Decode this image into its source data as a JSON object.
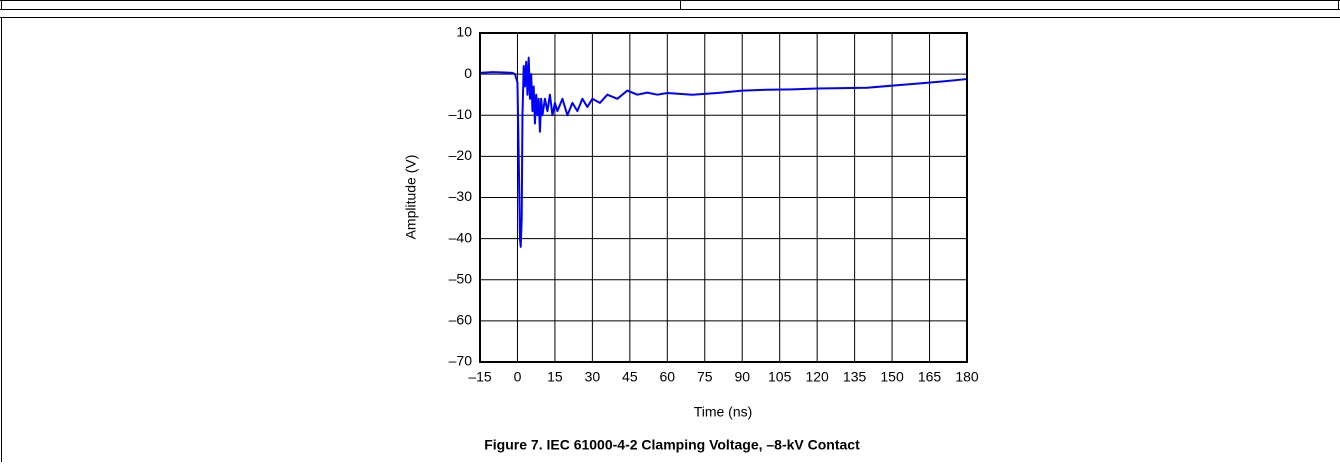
{
  "chart_data": {
    "type": "line",
    "caption": "Figure 7. IEC 61000-4-2 Clamping Voltage, –8-kV Contact",
    "xlabel": "Time (ns)",
    "ylabel": "Amplitude (V)",
    "xlim": [
      -15,
      180
    ],
    "ylim": [
      -70,
      10
    ],
    "xticks": [
      {
        "value": -15,
        "label": "–15"
      },
      0,
      15,
      30,
      45,
      60,
      75,
      90,
      105,
      120,
      135,
      150,
      165,
      180
    ],
    "yticks": [
      {
        "value": -70,
        "label": "–70"
      },
      {
        "value": -60,
        "label": "–60"
      },
      {
        "value": -50,
        "label": "–50"
      },
      {
        "value": -40,
        "label": "–40"
      },
      {
        "value": -30,
        "label": "–30"
      },
      {
        "value": -20,
        "label": "–20"
      },
      {
        "value": -10,
        "label": "–10"
      },
      0,
      10
    ],
    "grid": true,
    "x": [
      -15,
      -10,
      -5,
      -2,
      -1,
      0,
      0.5,
      1,
      1.3,
      1.7,
      2,
      2.5,
      3,
      3.5,
      4,
      4.5,
      5,
      5.5,
      6,
      6.5,
      7,
      7.5,
      8,
      8.5,
      9,
      9.5,
      10,
      11,
      12,
      13,
      14,
      15,
      16,
      18,
      20,
      22,
      24,
      26,
      28,
      30,
      33,
      36,
      40,
      44,
      48,
      52,
      56,
      60,
      70,
      80,
      90,
      100,
      110,
      120,
      130,
      140,
      150,
      160,
      170,
      180
    ],
    "series": [
      {
        "color": "#0000ff",
        "values": [
          0.3,
          0.5,
          0.4,
          0.3,
          0,
          -2,
          -20,
          -40,
          -42,
          -35,
          -10,
          2,
          -3,
          3,
          -5,
          4,
          -6,
          0,
          -9,
          -3,
          -12,
          -5,
          -10,
          -6,
          -14,
          -6,
          -10,
          -6,
          -9,
          -5,
          -10,
          -7,
          -9,
          -6,
          -10,
          -7,
          -9,
          -6,
          -8,
          -6,
          -7,
          -5,
          -6,
          -4,
          -5,
          -4.5,
          -5,
          -4.6,
          -5,
          -4.6,
          -4,
          -3.8,
          -3.7,
          -3.5,
          -3.4,
          -3.3,
          -2.8,
          -2.3,
          -1.8,
          -1.2
        ]
      }
    ]
  }
}
